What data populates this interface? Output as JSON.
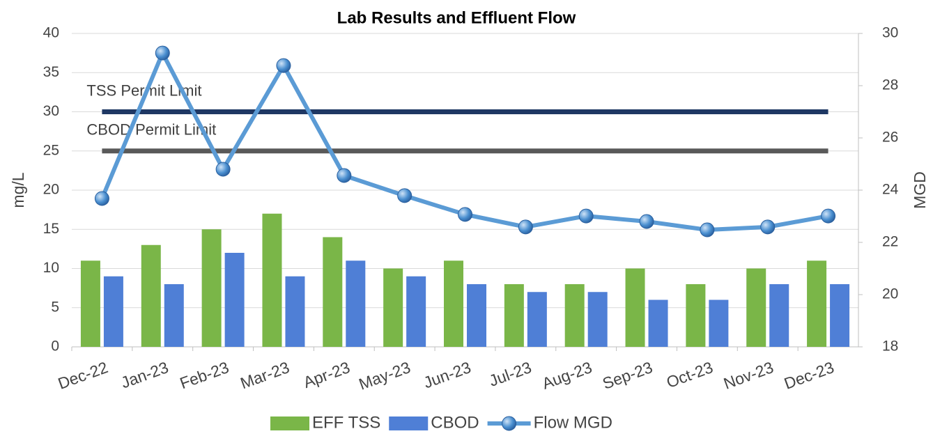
{
  "chart_data": {
    "type": "bar_line",
    "title": "Lab Results and Effluent Flow",
    "ylabel": "mg/L",
    "y2label": "MGD",
    "categories": [
      "Dec-22",
      "Jan-23",
      "Feb-23",
      "Mar-23",
      "Apr-23",
      "May-23",
      "Jun-23",
      "Jul-23",
      "Aug-23",
      "Sep-23",
      "Oct-23",
      "Nov-23",
      "Dec-23"
    ],
    "series": [
      {
        "name": "EFF TSS",
        "color": "#7ab648",
        "type": "bar",
        "values": [
          11,
          13,
          15,
          17,
          14,
          10,
          11,
          8,
          8,
          10,
          8,
          10,
          11
        ]
      },
      {
        "name": "CBOD",
        "color": "#4f7fd6",
        "type": "bar",
        "values": [
          9,
          8,
          12,
          9,
          11,
          9,
          8,
          7,
          7,
          6,
          6,
          8,
          8
        ]
      },
      {
        "name": "Flow MGD",
        "color": "#5b9bd5",
        "type": "line",
        "axis": "y2",
        "values": [
          23.68,
          29.25,
          24.8,
          28.77,
          24.56,
          23.79,
          23.07,
          22.59,
          23.01,
          22.8,
          22.48,
          22.59,
          23.01
        ]
      }
    ],
    "limits": [
      {
        "name": "TSS Permit Limit",
        "value": 30,
        "color": "#1f3864"
      },
      {
        "name": "CBOD Permit Limit",
        "value": 25,
        "color": "#595959"
      }
    ],
    "ylim": [
      0,
      40
    ],
    "yticks": [
      0,
      5,
      10,
      15,
      20,
      25,
      30,
      35,
      40
    ],
    "y2lim": [
      18,
      30
    ],
    "y2ticks": [
      18,
      20,
      22,
      24,
      26,
      28,
      30
    ],
    "grid": true
  }
}
